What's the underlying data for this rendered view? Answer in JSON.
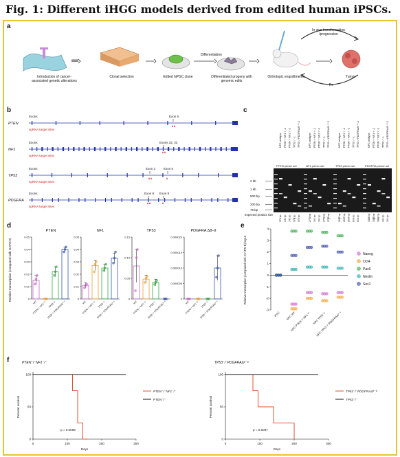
{
  "title": "Fig. 1: Different iHGG models derived from edited human iPSCs.",
  "panels": {
    "a": "a",
    "b": "b",
    "c": "c",
    "d": "d",
    "e": "e",
    "f": "f"
  },
  "panel_a": {
    "step1": "Introduction of cancer-associated genetic alterations",
    "step2": "Clonal selection",
    "step3": "Edited hiPSC clone",
    "step3_arrow": "Differentiation",
    "step4": "Differentiated progeny with genomic edits",
    "step5": "Orthotopic engraftment",
    "step6": "Tumor",
    "loop_top": "In vivo transformation /progression",
    "loop_bottom": "Re"
  },
  "panel_b": {
    "genes": [
      {
        "name": "PTEN",
        "exons_label": "Exons",
        "sg_label": "sgRNA target sites",
        "callout": "Exon 5"
      },
      {
        "name": "NF1",
        "exons_label": "Exons",
        "sg_label": "sgRNA target sites",
        "callout": "Exons 32, 33"
      },
      {
        "name": "TP53",
        "exons_label": "Exons",
        "sg_label": "sgRNA target sites",
        "callout": "Exon 2",
        "callout2": "Exon 6"
      },
      {
        "name": "PDGFRA",
        "exons_label": "Exons",
        "sg_label": "sgRNA target sites",
        "callout": "Exon 8",
        "callout2": "Exon 9"
      }
    ]
  },
  "panel_c": {
    "primer_sets": [
      "PTEN primer set",
      "NF1 primer set",
      "TP53 primer set",
      "PDGFRA primer set"
    ],
    "size_labels": [
      "2 kb",
      "1 kb",
      "500 bp",
      "200 bp",
      "75 bp"
    ],
    "expected_label": "Expected product size",
    "lane_groups": [
      [
        "NPC wildtype",
        "PTEN⁻/⁻NF1⁻/⁻-1",
        "PTEN⁻/⁻NF1⁻/⁻-2",
        "TP53⁻/⁻-1",
        "TP53⁻/⁻PDGFRAΔ⁸⁻⁹-2"
      ],
      [
        "NPC wildtype",
        "PTEN⁻/⁻NF1⁻/⁻-1",
        "PTEN⁻/⁻NF1⁻/⁻-2",
        "TP53⁻/⁻-1",
        "TP53⁻/⁻PDGFRAΔ⁸⁻⁹-2"
      ],
      [
        "NPC wildtype",
        "PTEN⁻/⁻NF1⁻/⁻-1",
        "PTEN⁻/⁻NF1⁻/⁻-2",
        "TP53⁻/⁻-1",
        "TP53⁻/⁻PDGFRAΔ⁸⁻⁹-2"
      ],
      [
        "NPC wildtype",
        "PTEN⁻/⁻NF1⁻/⁻-1",
        "PTEN⁻/⁻NF1⁻/⁻-2",
        "TP53⁻/⁻-1",
        "TP53⁻/⁻PDGFRAΔ⁸⁻⁹-2"
      ]
    ],
    "expected_sizes": [
      [
        "974 bp",
        "140 bp",
        "140 bp",
        "974 bp",
        "974 bp"
      ],
      [
        "2739 bp",
        "160 bp",
        "160 bp",
        "2739 bp",
        "2739 bp"
      ],
      [
        "2657 bp",
        "2657 bp",
        "2657 bp",
        "608 bp",
        "608 bp"
      ],
      [
        "3488 bp",
        "3488 bp",
        "3488 bp",
        "181 bp",
        "181 bp"
      ]
    ]
  },
  "panel_d": {
    "ylabel": "Relative transcription (compared with GAPDH)",
    "groups": [
      "WT",
      "PTEN⁻/⁻NF1⁻/⁻",
      "TP53⁻/⁻",
      "TP53⁻/⁻PDGFRAΔ⁸⁻⁹"
    ],
    "group_colors": [
      "#cc66cc",
      "#f0a030",
      "#33aa44",
      "#3355aa"
    ]
  },
  "panel_e": {
    "ylabel": "Relative transcription (compared with CV-iPS-B) log10",
    "categories": [
      "iPSC",
      "NPC WT",
      "NPC PTEN⁻/⁻NF1⁻/⁻",
      "NPC TP53⁻/⁻",
      "NPC TP53⁻/⁻PDGFRAΔ⁸⁻⁹"
    ],
    "legend": [
      {
        "name": "Nanog",
        "color": "#cc66cc"
      },
      {
        "name": "Oct4",
        "color": "#f0a030"
      },
      {
        "name": "Pax6",
        "color": "#33aa44"
      },
      {
        "name": "Nestin",
        "color": "#22aaaa"
      },
      {
        "name": "Sox1",
        "color": "#3344aa"
      }
    ]
  },
  "panel_f": {
    "left": {
      "header": "PTEN⁻/⁻NF1⁻/⁻",
      "legend": [
        "PTEN⁻/⁻NF1⁻/⁻",
        "PTEN⁻/⁻"
      ],
      "pvalue": "p = 0.0069",
      "xlabel": "Days",
      "ylabel": "Percent survival"
    },
    "right": {
      "header": "TP53⁻/⁻PDGFRAΔ⁸⁻⁹",
      "legend": [
        "TP53⁻/⁻PDGFRAΔ⁸⁻⁹",
        "TP53⁻/⁻"
      ],
      "pvalue": "p = 0.0067",
      "xlabel": "Days",
      "ylabel": "Percent survival"
    }
  },
  "chart_data": [
    {
      "type": "bar",
      "title": "PTEN",
      "categories": [
        "WT",
        "PTEN⁻/⁻NF1⁻/⁻",
        "TP53⁻/⁻",
        "TP53⁻/⁻PDGFRAΔ⁸⁻⁹"
      ],
      "values": [
        0.015,
        0.0,
        0.022,
        0.04
      ],
      "errors": [
        0.004,
        0.0,
        0.004,
        0.002
      ],
      "ylim": [
        0,
        0.05
      ],
      "yticks": [
        "0",
        "0.01",
        "0.02",
        "0.03",
        "0.04",
        "0.05"
      ],
      "points": [
        [
          0.012,
          0.016,
          0.019
        ],
        [
          0.0,
          0.0,
          0.0
        ],
        [
          0.019,
          0.022,
          0.026
        ],
        [
          0.038,
          0.04,
          0.042
        ]
      ]
    },
    {
      "type": "bar",
      "title": "NF1",
      "categories": [
        "WT",
        "PTEN⁻/⁻NF1⁻/⁻",
        "TP53⁻/⁻",
        "TP53⁻/⁻PDGFRAΔ⁸⁻⁹"
      ],
      "values": [
        0.011,
        0.027,
        0.025,
        0.033
      ],
      "errors": [
        0.002,
        0.004,
        0.003,
        0.004
      ],
      "ylim": [
        0,
        0.05
      ],
      "yticks": [
        "0",
        "0.01",
        "0.02",
        "0.03",
        "0.04",
        "0.05"
      ],
      "points": [
        [
          0.009,
          0.011,
          0.012
        ],
        [
          0.022,
          0.028,
          0.03
        ],
        [
          0.023,
          0.025,
          0.028
        ],
        [
          0.029,
          0.033,
          0.038
        ]
      ]
    },
    {
      "type": "bar",
      "title": "TP53",
      "categories": [
        "WT",
        "PTEN⁻/⁻NF1⁻/⁻",
        "TP53⁻/⁻",
        "TP53⁻/⁻PDGFRAΔ⁸⁻⁹"
      ],
      "values": [
        0.08,
        0.048,
        0.04,
        0.0
      ],
      "errors": [
        0.04,
        0.01,
        0.008,
        0.0
      ],
      "ylim": [
        0,
        0.15
      ],
      "yticks": [
        "0",
        "0.05",
        "0.10",
        "0.15"
      ],
      "points": [
        [
          0.02,
          0.1,
          0.12
        ],
        [
          0.04,
          0.05,
          0.055
        ],
        [
          0.035,
          0.04,
          0.045
        ],
        [
          0.0,
          0.0,
          0.0
        ]
      ]
    },
    {
      "type": "bar",
      "title": "PDGFRA Δ8–9",
      "categories": [
        "WT",
        "PTEN⁻/⁻NF1⁻/⁻",
        "TP53⁻/⁻",
        "TP53⁻/⁻PDGFRAΔ⁸⁻⁹"
      ],
      "values": [
        0.0,
        0.0,
        0.0,
        1e-05
      ],
      "errors": [
        0.0,
        0.0,
        0.0,
        4e-06
      ],
      "ylim": [
        0,
        2e-05
      ],
      "yticks": [
        "0",
        "0.000005",
        "0.000010",
        "0.000015",
        "0.000020"
      ],
      "points": [
        [
          0.0,
          0.0,
          0.0
        ],
        [
          0.0,
          0.0,
          0.0
        ],
        [
          0.0,
          0.0,
          0.0
        ],
        [
          7e-06,
          1e-05,
          1.4e-05
        ]
      ]
    },
    {
      "type": "scatter",
      "title": "",
      "categories": [
        "iPSC",
        "NPC WT",
        "NPC PTEN⁻/⁻NF1⁻/⁻",
        "NPC TP53⁻/⁻",
        "NPC TP53⁻/⁻PDGFRAΔ⁸⁻⁹"
      ],
      "ylim": [
        -3,
        4
      ],
      "yticks": [
        "-3",
        "-2",
        "-1",
        "0",
        "1",
        "2",
        "3",
        "4"
      ],
      "series": [
        {
          "name": "Nanog",
          "values": [
            0,
            -2.5,
            -1.5,
            -1.6,
            -1.5
          ]
        },
        {
          "name": "Oct4",
          "values": [
            0,
            -2.9,
            -2.0,
            -2.2,
            -1.9
          ]
        },
        {
          "name": "Pax6",
          "values": [
            0,
            3.8,
            3.8,
            3.7,
            3.4
          ]
        },
        {
          "name": "Nestin",
          "values": [
            0,
            0.5,
            0.7,
            0.7,
            0.6
          ]
        },
        {
          "name": "Sox1",
          "values": [
            0,
            1.7,
            2.4,
            2.5,
            2.0
          ]
        }
      ]
    },
    {
      "type": "line",
      "title": "",
      "xlim": [
        0,
        300
      ],
      "ylim": [
        0,
        100
      ],
      "xticks": [
        "0",
        "100",
        "200",
        "300"
      ],
      "yticks": [
        "0",
        "50",
        "100"
      ],
      "series": [
        {
          "name": "PTEN⁻/⁻NF1⁻/⁻",
          "x": [
            0,
            115,
            115,
            130,
            130,
            145,
            145,
            160
          ],
          "y": [
            100,
            100,
            75,
            75,
            25,
            25,
            0,
            0
          ]
        },
        {
          "name": "PTEN⁻/⁻",
          "x": [
            0,
            270
          ],
          "y": [
            100,
            100
          ]
        }
      ]
    },
    {
      "type": "line",
      "title": "",
      "xlim": [
        0,
        300
      ],
      "ylim": [
        0,
        100
      ],
      "xticks": [
        "0",
        "100",
        "200",
        "300"
      ],
      "yticks": [
        "0",
        "50",
        "100"
      ],
      "series": [
        {
          "name": "TP53⁻/⁻PDGFRAΔ⁸⁻⁹",
          "x": [
            0,
            80,
            80,
            95,
            95,
            140,
            140,
            200,
            200
          ],
          "y": [
            100,
            100,
            75,
            75,
            50,
            50,
            25,
            25,
            0
          ]
        },
        {
          "name": "TP53⁻/⁻",
          "x": [
            0,
            270
          ],
          "y": [
            100,
            100
          ]
        }
      ]
    }
  ]
}
